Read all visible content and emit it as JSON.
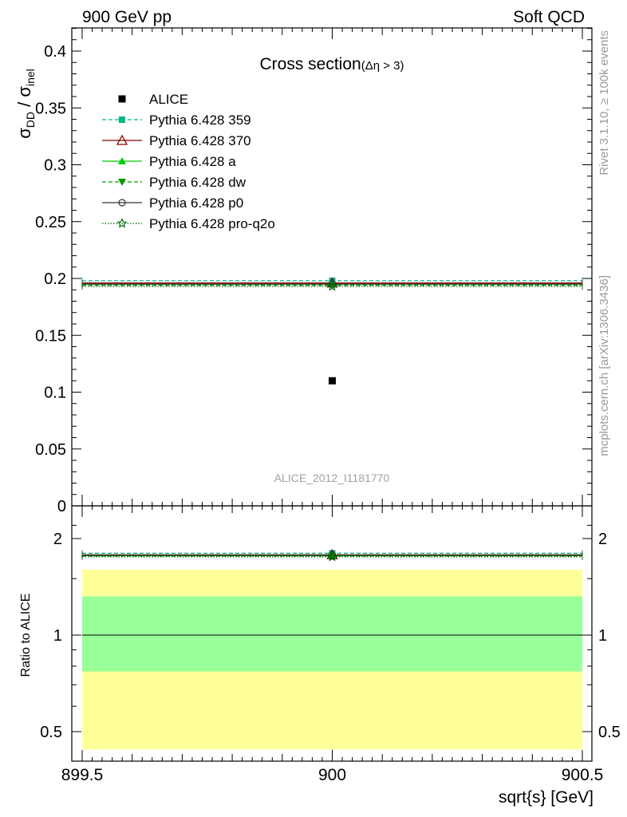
{
  "header": {
    "left": "900 GeV pp",
    "right": "Soft QCD"
  },
  "side_labels": {
    "top": "Rivet 3.1.10, ≥ 100k events",
    "bottom": "mcplots.cern.ch [arXiv:1306.3436]"
  },
  "watermark": "ALICE_2012_I1181770",
  "colors": {
    "alice": "#000000",
    "p359": "#00b686",
    "p370": "#8b0000",
    "pa": "#00cc00",
    "pdw": "#009900",
    "pp0": "#333333",
    "pq2o": "#006400",
    "band_inner": "#99ff99",
    "band_outer": "#ffff99"
  },
  "chart_data": [
    {
      "type": "scatter",
      "title_main": "Cross section",
      "title_sub": "(Δη > 3)",
      "ylabel_main": "σ",
      "ylabel_sub1": "DD",
      "ylabel_mid": " / σ",
      "ylabel_sub2": "inel",
      "xlim": [
        899.5,
        900.5
      ],
      "ylim": [
        0,
        0.42
      ],
      "y_ticks": [
        0,
        0.05,
        0.1,
        0.15,
        0.2,
        0.25,
        0.3,
        0.35,
        0.4
      ],
      "y_tick_labels": [
        "0",
        "0.05",
        "0.1",
        "0.15",
        "0.2",
        "0.25",
        "0.3",
        "0.35",
        "0.4"
      ],
      "legend_position": "top-left",
      "data": {
        "name": "ALICE",
        "x": 900,
        "y": 0.11
      },
      "series": [
        {
          "name": "Pythia 6.428 359",
          "x": [
            899.5,
            900.5
          ],
          "y": 0.198,
          "marker": "square",
          "line": "dashed",
          "color_key": "p359"
        },
        {
          "name": "Pythia 6.428 370",
          "x": [
            899.5,
            900.5
          ],
          "y": 0.196,
          "marker": "triangle-open",
          "line": "solid",
          "color_key": "p370"
        },
        {
          "name": "Pythia 6.428 a",
          "x": [
            899.5,
            900.5
          ],
          "y": 0.195,
          "marker": "triangle",
          "line": "solid",
          "color_key": "pa"
        },
        {
          "name": "Pythia 6.428 dw",
          "x": [
            899.5,
            900.5
          ],
          "y": 0.194,
          "marker": "triangle-down",
          "line": "dashed",
          "color_key": "pdw"
        },
        {
          "name": "Pythia 6.428 p0",
          "x": [
            899.5,
            900.5
          ],
          "y": 0.195,
          "marker": "circle-open",
          "line": "solid",
          "color_key": "pp0"
        },
        {
          "name": "Pythia 6.428 pro-q2o",
          "x": [
            899.5,
            900.5
          ],
          "y": 0.193,
          "marker": "star",
          "line": "dotted",
          "color_key": "pq2o"
        }
      ]
    },
    {
      "type": "line",
      "ylabel": "Ratio to ALICE",
      "xlabel": "sqrt{s} [GeV]",
      "xlim": [
        899.5,
        900.5
      ],
      "ylim": [
        0.4,
        2.45
      ],
      "scale": "log",
      "x_ticks": [
        899.5,
        900,
        900.5
      ],
      "x_tick_labels": [
        "899.5",
        "900",
        "900.5"
      ],
      "y_ticks": [
        0.5,
        1,
        2
      ],
      "y_tick_labels": [
        "0.5",
        "1",
        "2"
      ],
      "band_inner": [
        0.77,
        1.32
      ],
      "band_outer": [
        0.44,
        1.6
      ],
      "reference": 1,
      "ratios": [
        1.8,
        1.78,
        1.77,
        1.765,
        1.775,
        1.755
      ]
    }
  ]
}
